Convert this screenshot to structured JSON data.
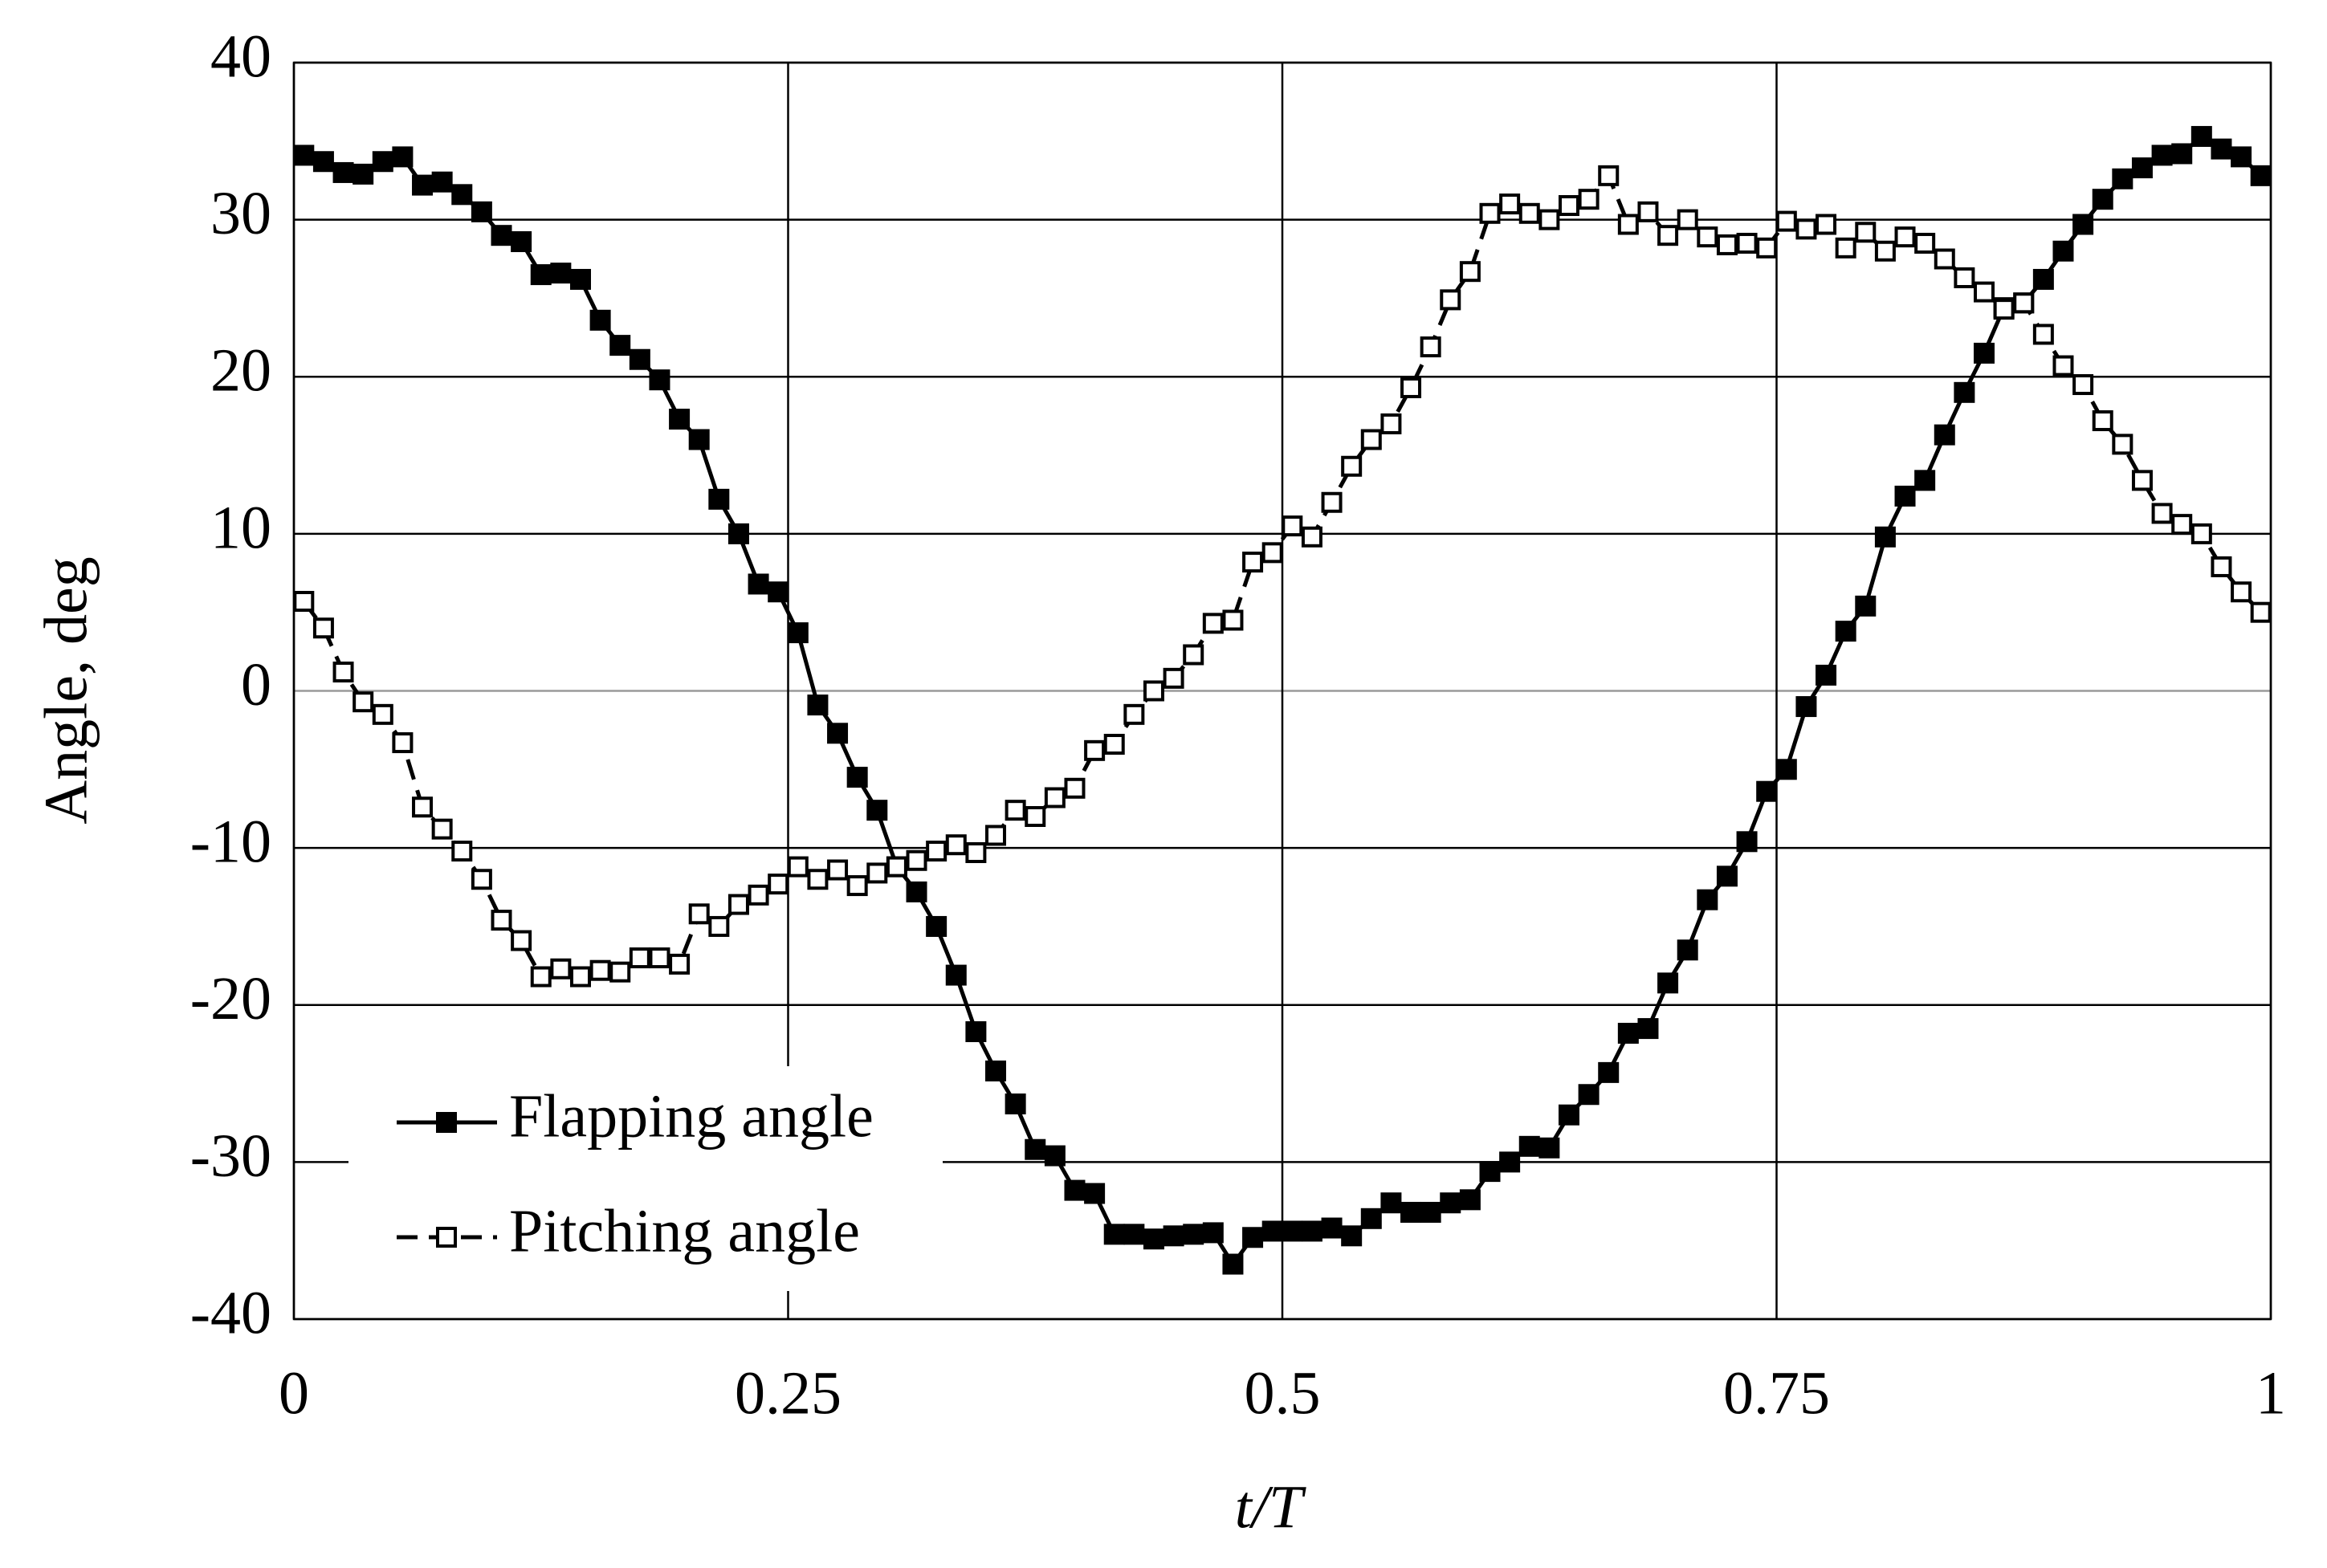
{
  "chart_data": {
    "type": "line",
    "xlabel": "t/T",
    "ylabel": "Angle, deg",
    "xlim": [
      0,
      1
    ],
    "xticks": [
      0,
      0.25,
      0.5,
      0.75,
      1
    ],
    "ylim": [
      -40,
      40
    ],
    "yticks": [
      -40,
      -30,
      -20,
      -10,
      0,
      10,
      20,
      30,
      40
    ],
    "grid": true,
    "legend": "lower left",
    "x": [
      0.005,
      0.015,
      0.025,
      0.035,
      0.045,
      0.055,
      0.065,
      0.075,
      0.085,
      0.095,
      0.105,
      0.115,
      0.125,
      0.135,
      0.145,
      0.155,
      0.165,
      0.175,
      0.185,
      0.195,
      0.205,
      0.215,
      0.225,
      0.235,
      0.245,
      0.255,
      0.265,
      0.275,
      0.285,
      0.295,
      0.305,
      0.315,
      0.325,
      0.335,
      0.345,
      0.355,
      0.365,
      0.375,
      0.385,
      0.395,
      0.405,
      0.415,
      0.425,
      0.435,
      0.445,
      0.455,
      0.465,
      0.475,
      0.485,
      0.495,
      0.505,
      0.515,
      0.525,
      0.535,
      0.545,
      0.555,
      0.565,
      0.575,
      0.585,
      0.595,
      0.605,
      0.615,
      0.625,
      0.635,
      0.645,
      0.655,
      0.665,
      0.675,
      0.685,
      0.695,
      0.705,
      0.715,
      0.725,
      0.735,
      0.745,
      0.755,
      0.765,
      0.775,
      0.785,
      0.795,
      0.805,
      0.815,
      0.825,
      0.835,
      0.845,
      0.855,
      0.865,
      0.875,
      0.885,
      0.895,
      0.905,
      0.915,
      0.925,
      0.935,
      0.945,
      0.955,
      0.965,
      0.975,
      0.985,
      0.995
    ],
    "series": [
      {
        "name": "Flapping angle",
        "color": "#000000",
        "marker": "filled",
        "dashed": false,
        "values": [
          34.1,
          33.7,
          33.0,
          32.9,
          33.7,
          34.0,
          32.2,
          32.4,
          31.6,
          30.5,
          29.0,
          28.6,
          26.5,
          26.6,
          26.2,
          23.6,
          22.0,
          21.1,
          19.8,
          17.3,
          16.0,
          12.2,
          10.0,
          6.8,
          6.3,
          3.7,
          -0.9,
          -2.7,
          -5.5,
          -7.6,
          -11.2,
          -12.8,
          -15.0,
          -18.1,
          -21.7,
          -24.2,
          -26.3,
          -29.2,
          -29.6,
          -31.8,
          -32.0,
          -34.6,
          -34.6,
          -34.9,
          -34.7,
          -34.6,
          -34.5,
          -36.5,
          -34.8,
          -34.4,
          -34.4,
          -34.4,
          -34.2,
          -34.7,
          -33.6,
          -32.6,
          -33.2,
          -33.2,
          -32.6,
          -32.4,
          -30.6,
          -30.0,
          -29.0,
          -29.1,
          -27.0,
          -25.7,
          -24.3,
          -21.8,
          -21.5,
          -18.6,
          -16.5,
          -13.3,
          -11.8,
          -9.6,
          -6.4,
          -5.0,
          -1.0,
          1.0,
          3.8,
          5.4,
          9.8,
          12.4,
          13.4,
          16.3,
          19.0,
          21.5,
          24.4,
          24.7,
          26.2,
          28.0,
          29.7,
          31.3,
          32.6,
          33.3,
          34.1,
          34.2,
          35.3,
          34.5,
          34.0,
          32.8
        ]
      },
      {
        "name": "Pitching angle",
        "color": "#000000",
        "marker": "open",
        "dashed": true,
        "values": [
          5.7,
          4.0,
          1.2,
          -0.7,
          -1.5,
          -3.3,
          -7.4,
          -8.8,
          -10.2,
          -12.0,
          -14.6,
          -15.9,
          -18.2,
          -17.7,
          -18.2,
          -17.8,
          -17.9,
          -17.0,
          -17.0,
          -17.4,
          -14.2,
          -15.0,
          -13.6,
          -13.0,
          -12.3,
          -11.2,
          -12.0,
          -11.4,
          -12.4,
          -11.6,
          -11.2,
          -10.8,
          -10.2,
          -9.8,
          -10.3,
          -9.2,
          -7.6,
          -8.0,
          -6.8,
          -6.2,
          -3.8,
          -3.4,
          -1.5,
          0.0,
          0.8,
          2.3,
          4.3,
          4.5,
          8.2,
          8.8,
          10.5,
          9.8,
          12.0,
          14.3,
          16.0,
          17.0,
          19.3,
          21.9,
          24.9,
          26.7,
          30.4,
          31.0,
          30.4,
          30.0,
          30.9,
          31.3,
          32.8,
          29.7,
          30.5,
          29.0,
          30.0,
          28.9,
          28.4,
          28.5,
          28.2,
          29.9,
          29.4,
          29.7,
          28.2,
          29.2,
          28.0,
          28.9,
          28.5,
          27.5,
          26.3,
          25.4,
          24.3,
          24.7,
          22.7,
          20.7,
          19.5,
          17.2,
          15.7,
          13.4,
          11.3,
          10.6,
          10.0,
          7.9,
          6.3,
          5.0
        ]
      }
    ]
  }
}
